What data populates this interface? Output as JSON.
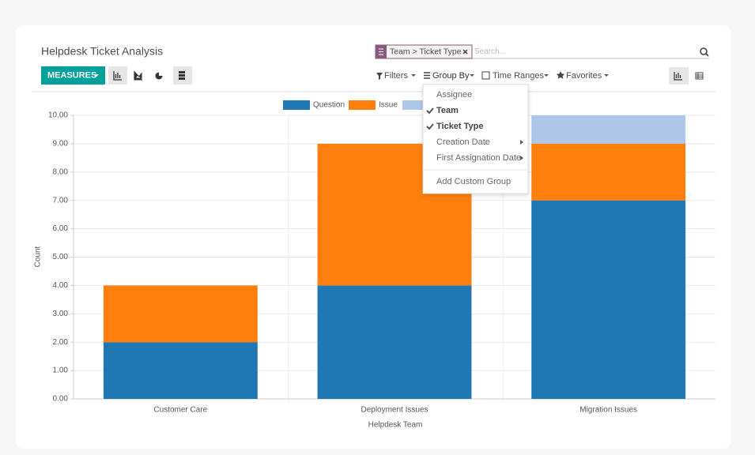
{
  "ui": {
    "title": "Helpdesk Ticket Analysis",
    "search": {
      "facet": "Team > Ticket Type",
      "placeholder": "Search..."
    },
    "measures": "MEASURES",
    "filters": "Filters",
    "group_by": "Group By",
    "time_ranges": "Time Ranges",
    "favorites": "Favorites",
    "group_by_menu": {
      "items": [
        {
          "label": "Assignee",
          "checked": false,
          "submenu": false
        },
        {
          "label": "Team",
          "checked": true,
          "submenu": false
        },
        {
          "label": "Ticket Type",
          "checked": true,
          "submenu": false
        },
        {
          "label": "Creation Date",
          "checked": false,
          "submenu": true
        },
        {
          "label": "First Assignation Date",
          "checked": false,
          "submenu": true
        }
      ],
      "custom": "Add Custom Group"
    }
  },
  "chart_data": {
    "type": "bar",
    "stacked": true,
    "categories": [
      "Customer Care",
      "Deployment Issues",
      "Migration Issues"
    ],
    "series": [
      {
        "name": "Question",
        "color": "#1f77b4",
        "values": [
          2,
          4,
          7
        ]
      },
      {
        "name": "Issue",
        "color": "#ff7f0e",
        "values": [
          2,
          5,
          2
        ]
      },
      {
        "color": "#aec7e8",
        "values": [
          0,
          0,
          1
        ]
      }
    ],
    "xlabel": "Helpdesk Team",
    "ylabel": "Count",
    "ylim": [
      0,
      10
    ],
    "yticks": [
      {
        "value": 0,
        "label": "0.00"
      },
      {
        "value": 1,
        "label": "1.00"
      },
      {
        "value": 2,
        "label": "2.00"
      },
      {
        "value": 3,
        "label": "3.00"
      },
      {
        "value": 4,
        "label": "4.00"
      },
      {
        "value": 5,
        "label": "5.00"
      },
      {
        "value": 6,
        "label": "6.00"
      },
      {
        "value": 7,
        "label": "7.00"
      },
      {
        "value": 8,
        "label": "8.00"
      },
      {
        "value": 9,
        "label": "9.00"
      },
      {
        "value": 10,
        "label": "10.00"
      }
    ],
    "grid": true
  }
}
